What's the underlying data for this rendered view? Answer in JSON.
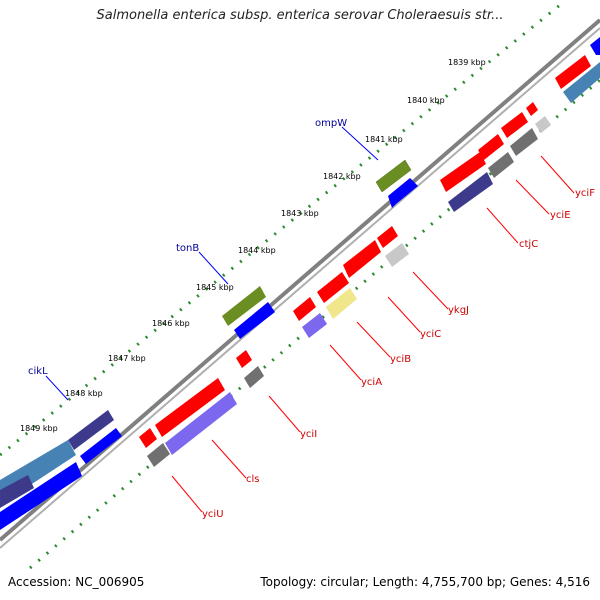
{
  "title": "Salmonella enterica subsp. enterica serovar Choleraesuis str...",
  "footer": {
    "accession": "Accession: NC_006905",
    "summary": "Topology: circular; Length: 4,755,700 bp; Genes: 4,516"
  },
  "colors": {
    "red": "#ff0000",
    "blue": "#0000ff",
    "olive": "#6b8e23",
    "navy": "#3d3a8c",
    "steel": "#4682b4",
    "gray": "#707070",
    "lightgray": "#c8c8c8",
    "lightyellow": "#f0e68c",
    "lavender": "#7b68ee",
    "backbone": "#808080",
    "tick": "#2e8b2e"
  },
  "ticks": [
    {
      "label": "1839 kbp"
    },
    {
      "label": "1840 kbp"
    },
    {
      "label": "1841 kbp"
    },
    {
      "label": "1842 kbp"
    },
    {
      "label": "1843 kbp"
    },
    {
      "label": "1844 kbp"
    },
    {
      "label": "1845 kbp"
    },
    {
      "label": "1846 kbp"
    },
    {
      "label": "1847 kbp"
    },
    {
      "label": "1848 kbp"
    },
    {
      "label": "1849 kbp"
    }
  ],
  "gene_labels": [
    {
      "name": "ompW"
    },
    {
      "name": "tonB"
    },
    {
      "name": "cikL"
    },
    {
      "name": "yciF"
    },
    {
      "name": "yciE"
    },
    {
      "name": "ctjC"
    },
    {
      "name": "ykgJ"
    },
    {
      "name": "yciC"
    },
    {
      "name": "yciB"
    },
    {
      "name": "yciA"
    },
    {
      "name": "yciI"
    },
    {
      "name": "cls"
    },
    {
      "name": "yciU"
    }
  ]
}
